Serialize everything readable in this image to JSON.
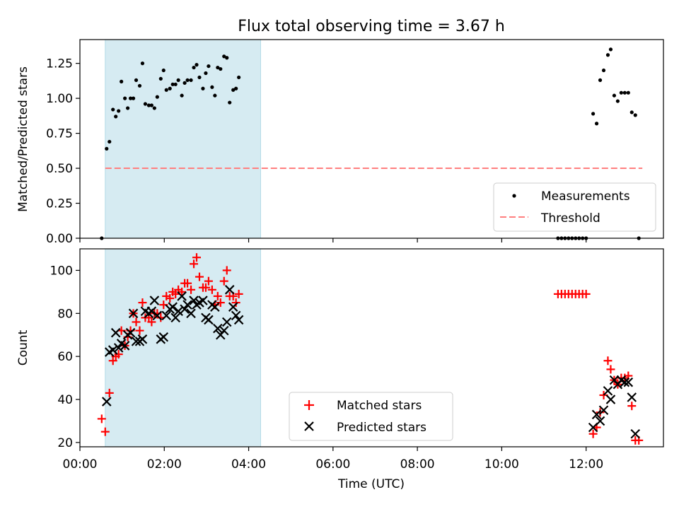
{
  "figure": {
    "title": "Flux total observing time = 3.67 h"
  },
  "chart_data": [
    {
      "type": "scatter",
      "ylabel": "Matched/Predicted stars",
      "xlim": [
        "00:00",
        "13:50"
      ],
      "ylim": [
        0,
        1.42
      ],
      "yticks": [
        "0.00",
        "0.25",
        "0.50",
        "0.75",
        "1.00",
        "1.25"
      ],
      "grid": false,
      "legend_position": "lower-right",
      "shaded_interval": [
        "00:36",
        "04:17"
      ],
      "series": [
        {
          "name": "Measurements",
          "style": "dot",
          "color": "#000000",
          "points": [
            [
              "00:31",
              0.0
            ],
            [
              "00:38",
              0.64
            ],
            [
              "00:42",
              0.69
            ],
            [
              "00:47",
              0.92
            ],
            [
              "00:51",
              0.87
            ],
            [
              "00:55",
              0.91
            ],
            [
              "00:59",
              1.12
            ],
            [
              "01:04",
              1.0
            ],
            [
              "01:08",
              0.93
            ],
            [
              "01:12",
              1.0
            ],
            [
              "01:16",
              1.0
            ],
            [
              "01:20",
              1.13
            ],
            [
              "01:25",
              1.09
            ],
            [
              "01:29",
              1.25
            ],
            [
              "01:33",
              0.96
            ],
            [
              "01:38",
              0.95
            ],
            [
              "01:42",
              0.95
            ],
            [
              "01:46",
              0.93
            ],
            [
              "01:50",
              1.01
            ],
            [
              "01:55",
              1.14
            ],
            [
              "01:59",
              1.2
            ],
            [
              "02:03",
              1.06
            ],
            [
              "02:08",
              1.07
            ],
            [
              "02:12",
              1.1
            ],
            [
              "02:16",
              1.1
            ],
            [
              "02:20",
              1.13
            ],
            [
              "02:25",
              1.02
            ],
            [
              "02:29",
              1.11
            ],
            [
              "02:33",
              1.13
            ],
            [
              "02:38",
              1.13
            ],
            [
              "02:42",
              1.22
            ],
            [
              "02:46",
              1.24
            ],
            [
              "02:50",
              1.15
            ],
            [
              "02:55",
              1.07
            ],
            [
              "02:59",
              1.18
            ],
            [
              "03:03",
              1.23
            ],
            [
              "03:08",
              1.08
            ],
            [
              "03:12",
              1.02
            ],
            [
              "03:16",
              1.22
            ],
            [
              "03:20",
              1.21
            ],
            [
              "03:25",
              1.3
            ],
            [
              "03:29",
              1.29
            ],
            [
              "03:33",
              0.97
            ],
            [
              "03:38",
              1.06
            ],
            [
              "03:42",
              1.07
            ],
            [
              "03:46",
              1.15
            ],
            [
              "11:20",
              0.0
            ],
            [
              "11:25",
              0.0
            ],
            [
              "11:30",
              0.0
            ],
            [
              "11:35",
              0.0
            ],
            [
              "11:40",
              0.0
            ],
            [
              "11:45",
              0.0
            ],
            [
              "11:50",
              0.0
            ],
            [
              "11:55",
              0.0
            ],
            [
              "12:00",
              0.0
            ],
            [
              "12:10",
              0.89
            ],
            [
              "12:15",
              0.82
            ],
            [
              "12:20",
              1.13
            ],
            [
              "12:25",
              1.2
            ],
            [
              "12:31",
              1.31
            ],
            [
              "12:35",
              1.35
            ],
            [
              "12:40",
              1.02
            ],
            [
              "12:45",
              0.98
            ],
            [
              "12:50",
              1.04
            ],
            [
              "12:55",
              1.04
            ],
            [
              "13:00",
              1.04
            ],
            [
              "13:05",
              0.9
            ],
            [
              "13:10",
              0.88
            ],
            [
              "13:15",
              0.0
            ]
          ]
        },
        {
          "name": "Threshold",
          "style": "dashed-line",
          "color": "#ff7f7f",
          "points": [
            [
              "00:36",
              0.5
            ],
            [
              "13:20",
              0.5
            ]
          ]
        }
      ]
    },
    {
      "type": "scatter",
      "ylabel": "Count",
      "xlabel": "Time (UTC)",
      "xticks": [
        "00:00",
        "02:00",
        "04:00",
        "06:00",
        "08:00",
        "10:00",
        "12:00"
      ],
      "xlim": [
        "00:00",
        "13:50"
      ],
      "ylim": [
        18,
        110
      ],
      "yticks": [
        "20",
        "40",
        "60",
        "80",
        "100"
      ],
      "grid": false,
      "legend_position": "lower-center",
      "shaded_interval": [
        "00:36",
        "04:17"
      ],
      "series": [
        {
          "name": "Matched stars",
          "marker": "plus",
          "color": "#ff0000",
          "points": [
            [
              "00:31",
              31
            ],
            [
              "00:36",
              25
            ],
            [
              "00:42",
              43
            ],
            [
              "00:47",
              58
            ],
            [
              "00:51",
              60
            ],
            [
              "00:55",
              61
            ],
            [
              "00:59",
              72
            ],
            [
              "01:04",
              65
            ],
            [
              "01:08",
              69
            ],
            [
              "01:12",
              72
            ],
            [
              "01:16",
              80
            ],
            [
              "01:20",
              76
            ],
            [
              "01:25",
              72
            ],
            [
              "01:29",
              85
            ],
            [
              "01:33",
              78
            ],
            [
              "01:38",
              78
            ],
            [
              "01:42",
              76
            ],
            [
              "01:46",
              80
            ],
            [
              "01:50",
              80
            ],
            [
              "01:55",
              78
            ],
            [
              "01:59",
              84
            ],
            [
              "02:03",
              88
            ],
            [
              "02:08",
              87
            ],
            [
              "02:12",
              90
            ],
            [
              "02:16",
              89
            ],
            [
              "02:20",
              91
            ],
            [
              "02:25",
              90
            ],
            [
              "02:29",
              94
            ],
            [
              "02:33",
              94
            ],
            [
              "02:38",
              91
            ],
            [
              "02:42",
              103
            ],
            [
              "02:46",
              106
            ],
            [
              "02:50",
              97
            ],
            [
              "02:55",
              92
            ],
            [
              "02:59",
              92
            ],
            [
              "03:03",
              95
            ],
            [
              "03:08",
              91
            ],
            [
              "03:12",
              84
            ],
            [
              "03:16",
              88
            ],
            [
              "03:20",
              85
            ],
            [
              "03:25",
              95
            ],
            [
              "03:29",
              100
            ],
            [
              "03:33",
              88
            ],
            [
              "03:38",
              88
            ],
            [
              "03:42",
              85
            ],
            [
              "03:46",
              89
            ],
            [
              "11:20",
              89
            ],
            [
              "11:25",
              89
            ],
            [
              "11:30",
              89
            ],
            [
              "11:35",
              89
            ],
            [
              "11:40",
              89
            ],
            [
              "11:45",
              89
            ],
            [
              "11:50",
              89
            ],
            [
              "11:55",
              89
            ],
            [
              "12:00",
              89
            ],
            [
              "12:10",
              24
            ],
            [
              "12:15",
              27
            ],
            [
              "12:20",
              34
            ],
            [
              "12:25",
              42
            ],
            [
              "12:31",
              58
            ],
            [
              "12:35",
              54
            ],
            [
              "12:40",
              49
            ],
            [
              "12:45",
              47
            ],
            [
              "12:50",
              50
            ],
            [
              "12:55",
              50
            ],
            [
              "13:00",
              51
            ],
            [
              "13:05",
              37
            ],
            [
              "13:10",
              21
            ],
            [
              "13:15",
              21
            ]
          ]
        },
        {
          "name": "Predicted stars",
          "marker": "x",
          "color": "#000000",
          "points": [
            [
              "00:38",
              39
            ],
            [
              "00:42",
              62
            ],
            [
              "00:47",
              63
            ],
            [
              "00:51",
              71
            ],
            [
              "00:55",
              64
            ],
            [
              "00:59",
              66
            ],
            [
              "01:04",
              65
            ],
            [
              "01:08",
              70
            ],
            [
              "01:12",
              71
            ],
            [
              "01:16",
              80
            ],
            [
              "01:20",
              67
            ],
            [
              "01:25",
              67
            ],
            [
              "01:29",
              68
            ],
            [
              "01:33",
              81
            ],
            [
              "01:38",
              80
            ],
            [
              "01:42",
              81
            ],
            [
              "01:46",
              86
            ],
            [
              "01:50",
              79
            ],
            [
              "01:55",
              68
            ],
            [
              "01:59",
              69
            ],
            [
              "02:03",
              79
            ],
            [
              "02:08",
              82
            ],
            [
              "02:12",
              83
            ],
            [
              "02:16",
              78
            ],
            [
              "02:20",
              81
            ],
            [
              "02:25",
              88
            ],
            [
              "02:29",
              82
            ],
            [
              "02:33",
              84
            ],
            [
              "02:38",
              80
            ],
            [
              "02:42",
              86
            ],
            [
              "02:46",
              84
            ],
            [
              "02:50",
              85
            ],
            [
              "02:55",
              86
            ],
            [
              "02:59",
              78
            ],
            [
              "03:03",
              77
            ],
            [
              "03:08",
              84
            ],
            [
              "03:12",
              83
            ],
            [
              "03:16",
              73
            ],
            [
              "03:20",
              70
            ],
            [
              "03:25",
              72
            ],
            [
              "03:29",
              76
            ],
            [
              "03:33",
              91
            ],
            [
              "03:38",
              83
            ],
            [
              "03:42",
              79
            ],
            [
              "03:46",
              77
            ],
            [
              "12:10",
              27
            ],
            [
              "12:15",
              33
            ],
            [
              "12:20",
              30
            ],
            [
              "12:25",
              35
            ],
            [
              "12:31",
              44
            ],
            [
              "12:35",
              40
            ],
            [
              "12:40",
              49
            ],
            [
              "12:45",
              47
            ],
            [
              "12:50",
              49
            ],
            [
              "12:55",
              48
            ],
            [
              "13:00",
              48
            ],
            [
              "13:05",
              41
            ],
            [
              "13:10",
              24
            ]
          ]
        }
      ]
    }
  ]
}
